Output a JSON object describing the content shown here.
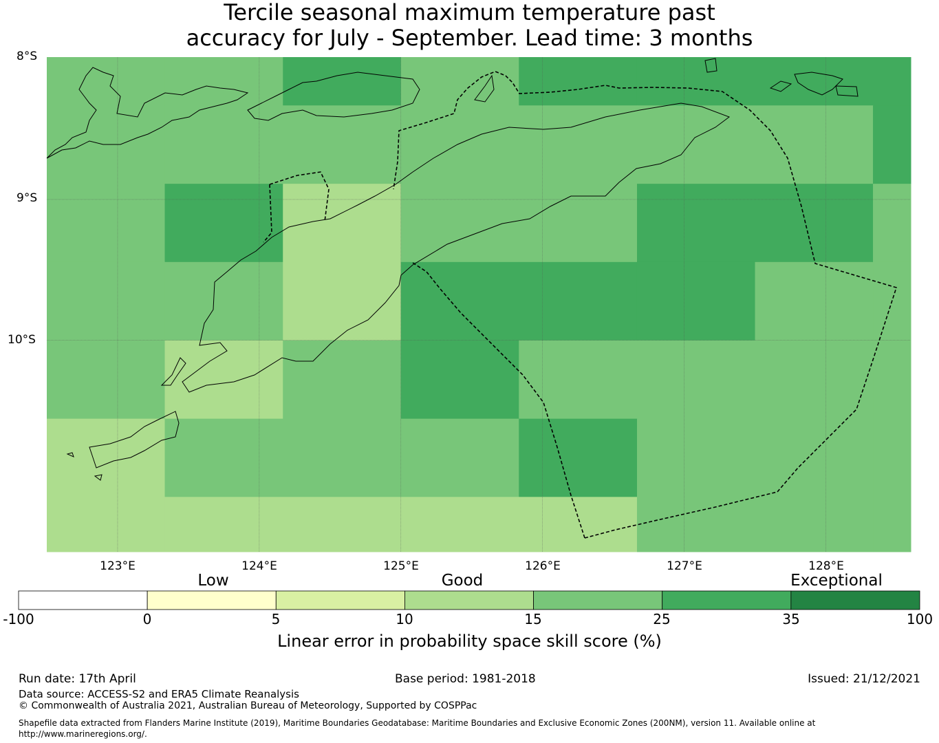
{
  "title": {
    "line1": "Tercile seasonal maximum temperature past",
    "line2": "accuracy for July - September. Lead time: 3 months"
  },
  "map": {
    "lat_labels": [
      "8°S",
      "9°S",
      "10°S"
    ],
    "lon_labels": [
      "123°E",
      "124°E",
      "125°E",
      "126°E",
      "127°E",
      "128°E"
    ],
    "colors": {
      "water_fill": "#ffffff",
      "grid_line": "#555555",
      "coast_line": "#000000"
    }
  },
  "colorbar": {
    "categories": [
      "Low",
      "Good",
      "Exceptional"
    ],
    "ticks": [
      "-100",
      "0",
      "5",
      "10",
      "15",
      "25",
      "35",
      "100"
    ],
    "colors": [
      "#ffffff",
      "#ffffcc",
      "#d9f0a3",
      "#addd8e",
      "#78c679",
      "#41ab5d",
      "#238443"
    ],
    "label": "Linear error in probability space skill score (%)"
  },
  "footer": {
    "run_date": "Run date: 17th April",
    "base_period": "Base period: 1981-2018",
    "issued": "Issued: 21/12/2021",
    "data_source": "Data source: ACCESS-S2 and ERA5 Climate Reanalysis",
    "copyright": "© Commonwealth of Australia 2021, Australian Bureau of Meteorology, Supported by COSPPac",
    "shapefile_line1": "Shapefile data extracted from Flanders Marine Institute (2019), Maritime Boundaries Geodatabase: Maritime Boundaries and Exclusive Economic Zones (200NM), version 11. Available online at",
    "shapefile_line2": "http://www.marineregions.org/."
  },
  "grid": {
    "lon_edges": [
      122.5,
      123.333,
      124.167,
      125.0,
      125.833,
      126.667,
      127.5,
      128.333,
      128.6
    ],
    "lat_edges": [
      -7.99,
      -8.333,
      -8.889,
      -9.444,
      -10.0,
      -10.556,
      -11.111,
      -11.5
    ],
    "values": [
      [
        20,
        20,
        30,
        20,
        30,
        30,
        30,
        30
      ],
      [
        20,
        20,
        20,
        20,
        20,
        20,
        20,
        30
      ],
      [
        20,
        30,
        12,
        20,
        20,
        30,
        30,
        20
      ],
      [
        20,
        20,
        12,
        30,
        30,
        30,
        20,
        20
      ],
      [
        20,
        12,
        20,
        30,
        20,
        20,
        20,
        20
      ],
      [
        12,
        20,
        20,
        20,
        30,
        20,
        20,
        20
      ],
      [
        12,
        12,
        12,
        12,
        12,
        20,
        20,
        20
      ]
    ]
  }
}
